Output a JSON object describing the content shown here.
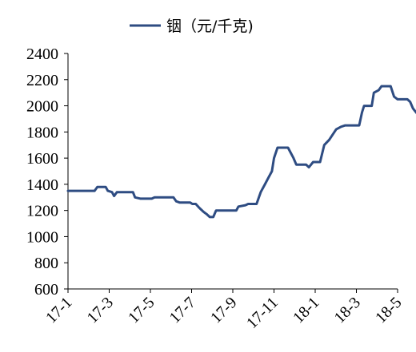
{
  "chart_data": {
    "type": "line",
    "title": "",
    "xlabel": "",
    "ylabel": "",
    "ylim": [
      600,
      2400
    ],
    "yticks": [
      600,
      800,
      1000,
      1200,
      1400,
      1600,
      1800,
      2000,
      2200,
      2400
    ],
    "xticks": [
      "17-1",
      "17-3",
      "17-5",
      "17-7",
      "17-9",
      "17-11",
      "18-1",
      "18-3",
      "18-5"
    ],
    "legend": "top-center",
    "grid": false,
    "series": [
      {
        "name": "铟（元/千克)",
        "color": "#2E4C82",
        "points": [
          [
            "2017-01-01",
            1350
          ],
          [
            "2017-02-08",
            1350
          ],
          [
            "2017-02-12",
            1380
          ],
          [
            "2017-02-24",
            1380
          ],
          [
            "2017-02-27",
            1350
          ],
          [
            "2017-03-05",
            1340
          ],
          [
            "2017-03-08",
            1310
          ],
          [
            "2017-03-12",
            1340
          ],
          [
            "2017-04-04",
            1340
          ],
          [
            "2017-04-07",
            1300
          ],
          [
            "2017-04-15",
            1290
          ],
          [
            "2017-05-01",
            1290
          ],
          [
            "2017-05-05",
            1300
          ],
          [
            "2017-06-01",
            1300
          ],
          [
            "2017-06-05",
            1270
          ],
          [
            "2017-06-10",
            1260
          ],
          [
            "2017-06-25",
            1260
          ],
          [
            "2017-06-28",
            1250
          ],
          [
            "2017-07-03",
            1250
          ],
          [
            "2017-07-08",
            1220
          ],
          [
            "2017-07-14",
            1190
          ],
          [
            "2017-07-19",
            1170
          ],
          [
            "2017-07-23",
            1150
          ],
          [
            "2017-07-28",
            1150
          ],
          [
            "2017-08-01",
            1200
          ],
          [
            "2017-08-30",
            1200
          ],
          [
            "2017-09-02",
            1230
          ],
          [
            "2017-09-12",
            1240
          ],
          [
            "2017-09-16",
            1250
          ],
          [
            "2017-09-28",
            1250
          ],
          [
            "2017-10-04",
            1340
          ],
          [
            "2017-10-10",
            1400
          ],
          [
            "2017-10-15",
            1450
          ],
          [
            "2017-10-20",
            1500
          ],
          [
            "2017-10-23",
            1600
          ],
          [
            "2017-10-28",
            1680
          ],
          [
            "2017-11-12",
            1680
          ],
          [
            "2017-11-20",
            1600
          ],
          [
            "2017-11-24",
            1550
          ],
          [
            "2017-12-08",
            1550
          ],
          [
            "2017-12-12",
            1530
          ],
          [
            "2017-12-18",
            1570
          ],
          [
            "2017-12-28",
            1570
          ],
          [
            "2018-01-03",
            1700
          ],
          [
            "2018-01-10",
            1740
          ],
          [
            "2018-01-20",
            1820
          ],
          [
            "2018-01-27",
            1840
          ],
          [
            "2018-02-02",
            1850
          ],
          [
            "2018-02-22",
            1850
          ],
          [
            "2018-02-26",
            1950
          ],
          [
            "2018-03-01",
            2000
          ],
          [
            "2018-03-12",
            2000
          ],
          [
            "2018-03-15",
            2100
          ],
          [
            "2018-03-22",
            2120
          ],
          [
            "2018-03-26",
            2150
          ],
          [
            "2018-04-08",
            2150
          ],
          [
            "2018-04-13",
            2070
          ],
          [
            "2018-04-18",
            2050
          ],
          [
            "2018-05-02",
            2050
          ],
          [
            "2018-05-06",
            2030
          ],
          [
            "2018-05-10",
            1980
          ],
          [
            "2018-05-16",
            1940
          ],
          [
            "2018-05-22",
            1900
          ],
          [
            "2018-05-28",
            1850
          ]
        ]
      }
    ]
  }
}
